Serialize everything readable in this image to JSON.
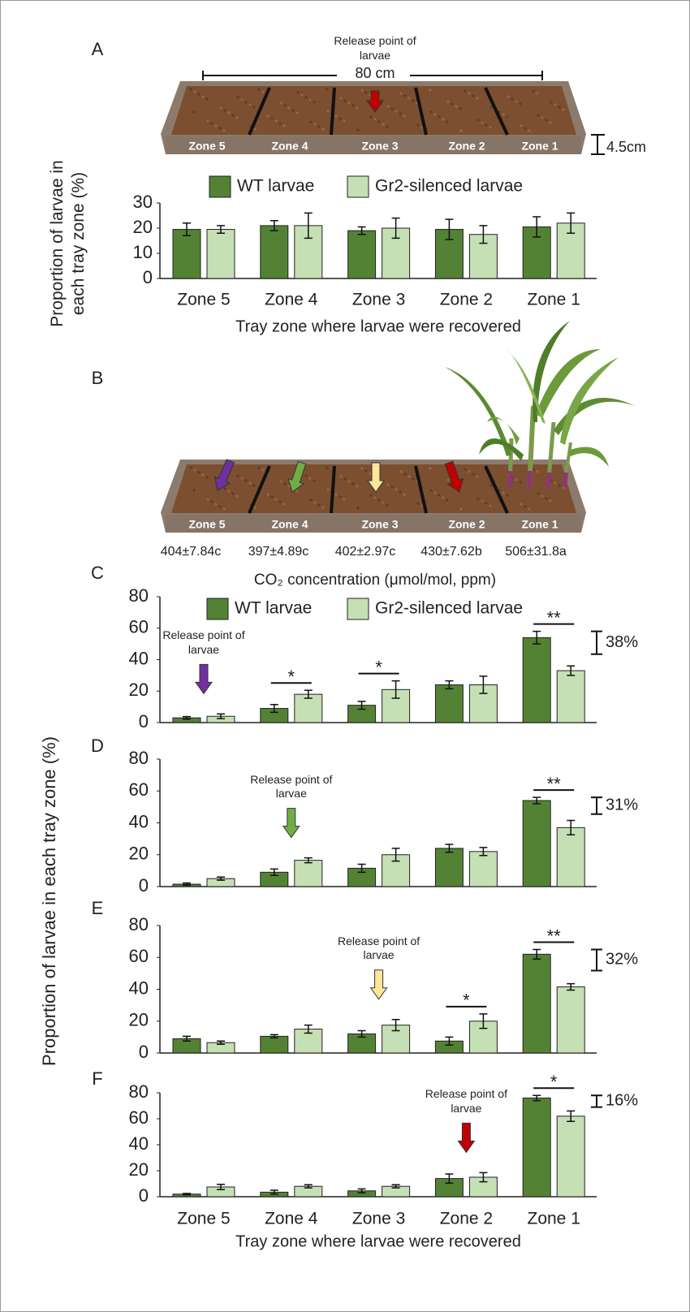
{
  "tray_a": {
    "release_label": "Release point of larvae",
    "length_label": "80 cm",
    "height_label": "4.5cm",
    "zones": [
      "Zone 5",
      "Zone 4",
      "Zone 3",
      "Zone 2",
      "Zone 1"
    ]
  },
  "tray_b": {
    "panel": "B",
    "zones": [
      "Zone 5",
      "Zone 4",
      "Zone 3",
      "Zone 2",
      "Zone 1"
    ],
    "co2_labels": [
      "404±7.84c",
      "397±4.89c",
      "402±2.97c",
      "430±7.62b",
      "506±31.8a"
    ],
    "co2_title": "CO₂ concentration (μmol/mol, ppm)"
  },
  "figure": {
    "ylabel": "Proportion of larvae in each tray zone (%)"
  },
  "chart_data": [
    {
      "type": "bar",
      "panel": "A",
      "ylabel": "Proportion of larvae in each tray zone (%)",
      "xlabel": "Tray zone where larvae were recovered",
      "categories": [
        "Zone 5",
        "Zone 4",
        "Zone 3",
        "Zone 2",
        "Zone 1"
      ],
      "legend": true,
      "ylim": [
        0,
        30
      ],
      "yticks": [
        0,
        10,
        20,
        30
      ],
      "series": [
        {
          "name": "WT larvae",
          "color": "#548235",
          "values": [
            19.5,
            21,
            19,
            19.5,
            20.5
          ],
          "errors": [
            2.5,
            2,
            1.5,
            4,
            4
          ]
        },
        {
          "name": "Gr2-silenced larvae",
          "color": "#c5e0b4",
          "values": [
            19.5,
            21,
            20,
            17.5,
            22
          ],
          "errors": [
            1.5,
            5,
            4,
            3.5,
            4
          ]
        }
      ]
    },
    {
      "type": "bar",
      "panel": "C",
      "legend": true,
      "ylim": [
        0,
        80
      ],
      "yticks": [
        0,
        20,
        40,
        60,
        80
      ],
      "series": [
        {
          "name": "WT larvae",
          "color": "#548235",
          "values": [
            3,
            9,
            11,
            24,
            54
          ],
          "errors": [
            0.8,
            2.5,
            2.5,
            2.5,
            4
          ]
        },
        {
          "name": "Gr2-silenced larvae",
          "color": "#c5e0b4",
          "values": [
            4,
            18,
            21,
            24,
            33
          ],
          "errors": [
            1.5,
            2.5,
            5.5,
            5.5,
            3
          ]
        }
      ],
      "significance": [
        null,
        "*",
        "*",
        null,
        "**"
      ],
      "release_label": [
        "Release point of larvae",
        null,
        null,
        null,
        null
      ],
      "release_color": "#7030a0",
      "difference_label": "38%"
    },
    {
      "type": "bar",
      "panel": "D",
      "ylim": [
        0,
        80
      ],
      "yticks": [
        0,
        20,
        40,
        60,
        80
      ],
      "series": [
        {
          "color": "#548235",
          "values": [
            1.5,
            9,
            11.5,
            24,
            54
          ],
          "errors": [
            0.7,
            2,
            2.5,
            2.5,
            2
          ]
        },
        {
          "color": "#c5e0b4",
          "values": [
            5,
            16.5,
            20,
            22,
            37
          ],
          "errors": [
            1,
            1.5,
            4,
            2.5,
            4.5
          ]
        }
      ],
      "significance": [
        null,
        null,
        null,
        null,
        "**"
      ],
      "release_label": [
        null,
        "Release point of larvae",
        null,
        null,
        null
      ],
      "release_color": "#70ad47",
      "difference_label": "31%"
    },
    {
      "type": "bar",
      "panel": "E",
      "ylim": [
        0,
        80
      ],
      "yticks": [
        0,
        20,
        40,
        60,
        80
      ],
      "series": [
        {
          "color": "#548235",
          "values": [
            9,
            10.5,
            12,
            7.5,
            62
          ],
          "errors": [
            1.5,
            1,
            2,
            2.5,
            3
          ]
        },
        {
          "color": "#c5e0b4",
          "values": [
            6.5,
            15,
            17.5,
            20,
            41.5
          ],
          "errors": [
            1,
            2.5,
            3.5,
            4.5,
            2
          ]
        }
      ],
      "significance": [
        null,
        null,
        null,
        "*",
        "**"
      ],
      "release_label": [
        null,
        null,
        "Release point of larvae",
        null,
        null
      ],
      "release_color": "#ffe699",
      "difference_label": "32%"
    },
    {
      "type": "bar",
      "panel": "F",
      "xlabel": "Tray zone where larvae were recovered",
      "categories": [
        "Zone 5",
        "Zone 4",
        "Zone 3",
        "Zone 2",
        "Zone 1"
      ],
      "ylim": [
        0,
        80
      ],
      "yticks": [
        0,
        20,
        40,
        60,
        80
      ],
      "series": [
        {
          "color": "#548235",
          "values": [
            2,
            3.5,
            4.5,
            14,
            76
          ],
          "errors": [
            0.5,
            1.5,
            1.5,
            3.5,
            2
          ]
        },
        {
          "color": "#c5e0b4",
          "values": [
            7.5,
            8,
            8,
            15,
            62
          ],
          "errors": [
            2,
            1.2,
            1.2,
            3.5,
            4
          ]
        }
      ],
      "significance": [
        null,
        null,
        null,
        null,
        "*"
      ],
      "release_label": [
        null,
        null,
        null,
        "Release point of larvae",
        null
      ],
      "release_color": "#c00000",
      "difference_label": "16%"
    }
  ]
}
